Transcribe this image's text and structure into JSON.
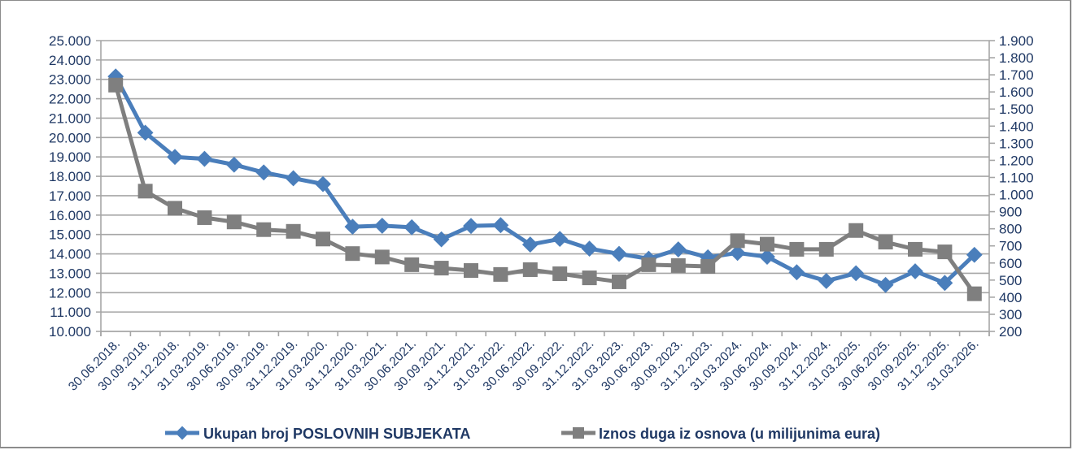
{
  "chart_data": {
    "type": "line",
    "title": "",
    "xlabel": "",
    "ylabel": "",
    "categories": [
      "30.06.2018.",
      "30.09.2018.",
      "31.12.2018.",
      "31.03.2019.",
      "30.06.2019.",
      "30.09.2019.",
      "31.12.2019.",
      "31.03.2020.",
      "31.12.2020.",
      "31.03.2021.",
      "30.06.2021.",
      "30.09.2021.",
      "31.12.2021.",
      "31.03.2022.",
      "30.06.2022.",
      "30.09.2022.",
      "31.12.2022.",
      "31.03.2023.",
      "30.06.2023.",
      "30.09.2023.",
      "31.12.2023.",
      "31.03.2024.",
      "30.06.2024.",
      "30.09.2024.",
      "31.12.2024.",
      "31.03.2025.",
      "30.06.2025.",
      "30.09.2025.",
      "31.12.2025.",
      "31.03.2026."
    ],
    "series": [
      {
        "name": "Ukupan broj POSLOVNIH SUBJEKATA",
        "axis": "left",
        "color": "#4a7ebb",
        "marker": "diamond",
        "values": [
          23150,
          20250,
          19000,
          18900,
          18600,
          18200,
          17900,
          17600,
          15400,
          15450,
          15370,
          14750,
          15440,
          15480,
          14480,
          14770,
          14270,
          14000,
          13750,
          14230,
          13820,
          14050,
          13850,
          13050,
          12600,
          13000,
          12400,
          13100,
          12500,
          13950
        ]
      },
      {
        "name": "Iznos duga iz osnova (u milijunima eura)",
        "axis": "right",
        "color": "#7f7f7f",
        "marker": "square",
        "values": [
          1640,
          1020,
          920,
          865,
          840,
          795,
          785,
          740,
          655,
          635,
          590,
          570,
          556,
          533,
          561,
          537,
          513,
          490,
          590,
          585,
          580,
          730,
          710,
          680,
          680,
          790,
          722,
          680,
          665,
          420
        ]
      }
    ],
    "y_left": {
      "min": 10000,
      "max": 25000,
      "step": 1000,
      "tick_labels": [
        "10.000",
        "11.000",
        "12.000",
        "13.000",
        "14.000",
        "15.000",
        "16.000",
        "17.000",
        "18.000",
        "19.000",
        "20.000",
        "21.000",
        "22.000",
        "23.000",
        "24.000",
        "25.000"
      ]
    },
    "y_right": {
      "min": 200,
      "max": 1900,
      "step": 100,
      "tick_labels": [
        "200",
        "300",
        "400",
        "500",
        "600",
        "700",
        "800",
        "900",
        "1.000",
        "1.100",
        "1.200",
        "1.300",
        "1.400",
        "1.500",
        "1.600",
        "1.700",
        "1.800",
        "1.900"
      ]
    },
    "grid": {
      "horizontal": true,
      "vertical": false,
      "color": "#a6a6a6"
    },
    "legend": {
      "position": "bottom"
    }
  },
  "legend": {
    "items": [
      {
        "label": "Ukupan broj POSLOVNIH SUBJEKATA",
        "color": "#4a7ebb",
        "marker": "diamond-icon"
      },
      {
        "label": "Iznos duga iz osnova (u milijunima eura)",
        "color": "#7f7f7f",
        "marker": "square-icon"
      }
    ]
  }
}
